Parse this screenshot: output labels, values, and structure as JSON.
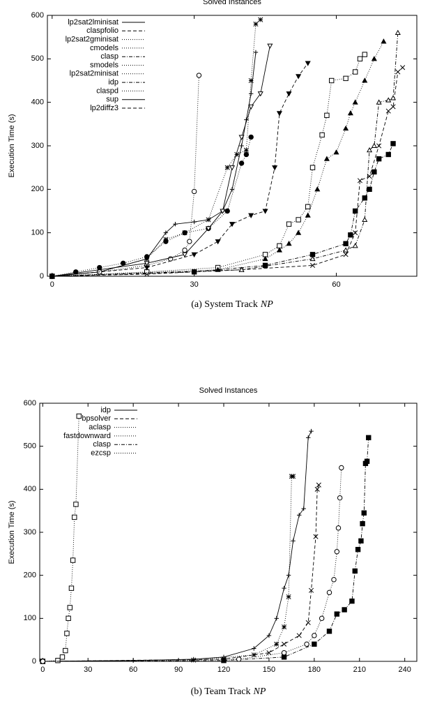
{
  "chart_data": [
    {
      "type": "line",
      "title": "Solved Instances",
      "y_label": "Execution Time (s)",
      "caption": "(a) System Track",
      "caption_italic": "NP",
      "xlim": [
        -1,
        77
      ],
      "xticks": [
        0,
        30,
        60
      ],
      "ylim": [
        0,
        600
      ],
      "yticks": [
        0,
        100,
        200,
        300,
        400,
        500,
        600
      ],
      "legend": "upper-left",
      "series": [
        {
          "name": "lp2sat2lminisat",
          "color": "#000000",
          "marker": "plus",
          "dash": "solid",
          "x": [
            0,
            10,
            20,
            24,
            26,
            30,
            33,
            36,
            38,
            40,
            41,
            42,
            43
          ],
          "values": [
            0,
            10,
            40,
            100,
            120,
            125,
            130,
            150,
            200,
            300,
            360,
            420,
            515
          ]
        },
        {
          "name": "claspfolio",
          "color": "#000000",
          "marker": "cross",
          "dash": "dashed",
          "x": [
            0,
            20,
            40,
            55,
            62,
            64,
            65,
            67,
            69,
            71,
            72,
            73,
            74
          ],
          "values": [
            0,
            5,
            15,
            25,
            50,
            100,
            220,
            230,
            300,
            380,
            390,
            470,
            480
          ]
        },
        {
          "name": "lp2sat2gminisat",
          "color": "#000000",
          "marker": "star",
          "dash": "dotted",
          "x": [
            0,
            10,
            20,
            24,
            28,
            33,
            37,
            39,
            41,
            42,
            43,
            44
          ],
          "values": [
            0,
            10,
            40,
            85,
            100,
            130,
            250,
            280,
            290,
            450,
            580,
            590
          ]
        },
        {
          "name": "cmodels",
          "color": "#000000",
          "marker": "square-open",
          "dash": "dotted",
          "x": [
            0,
            20,
            35,
            45,
            48,
            50,
            52,
            54,
            55,
            57,
            58,
            59,
            62,
            64,
            65,
            66
          ],
          "values": [
            0,
            10,
            20,
            50,
            70,
            120,
            130,
            160,
            250,
            325,
            370,
            450,
            455,
            470,
            500,
            510
          ]
        },
        {
          "name": "clasp",
          "color": "#000000",
          "marker": "square-filled",
          "dash": "dashdot",
          "x": [
            0,
            30,
            45,
            55,
            62,
            63,
            64,
            66,
            67,
            68,
            69,
            71,
            72
          ],
          "values": [
            0,
            10,
            25,
            50,
            75,
            95,
            150,
            180,
            200,
            240,
            270,
            280,
            305
          ]
        },
        {
          "name": "smodels",
          "color": "#000000",
          "marker": "circle-open",
          "dash": "dotted",
          "x": [
            0,
            10,
            20,
            25,
            28,
            29,
            30,
            31
          ],
          "values": [
            0,
            10,
            25,
            40,
            60,
            80,
            195,
            462
          ]
        },
        {
          "name": "lp2sat2minisat",
          "color": "#000000",
          "marker": "circle-filled",
          "dash": "dotted",
          "x": [
            0,
            5,
            10,
            15,
            20,
            24,
            28,
            33,
            37,
            40,
            41,
            42
          ],
          "values": [
            0,
            10,
            20,
            30,
            45,
            80,
            100,
            110,
            150,
            260,
            280,
            320
          ]
        },
        {
          "name": "idp",
          "color": "#000000",
          "marker": "triangle-open",
          "dash": "dashdot",
          "x": [
            0,
            40,
            55,
            62,
            64,
            66,
            67,
            68,
            69,
            71,
            72,
            73
          ],
          "values": [
            0,
            15,
            40,
            60,
            70,
            130,
            290,
            300,
            400,
            405,
            410,
            560
          ]
        },
        {
          "name": "claspd",
          "color": "#000000",
          "marker": "triangle-filled",
          "dash": "dotted",
          "x": [
            0,
            35,
            45,
            48,
            50,
            52,
            54,
            56,
            58,
            60,
            62,
            63,
            64,
            66,
            68,
            70
          ],
          "values": [
            0,
            15,
            40,
            60,
            75,
            100,
            140,
            200,
            270,
            285,
            340,
            375,
            400,
            450,
            500,
            540
          ]
        },
        {
          "name": "sup",
          "color": "#000000",
          "marker": "itriangle-open",
          "dash": "solid",
          "x": [
            0,
            20,
            28,
            33,
            36,
            38,
            40,
            42,
            44,
            46
          ],
          "values": [
            0,
            30,
            50,
            110,
            150,
            250,
            320,
            390,
            420,
            530
          ]
        },
        {
          "name": "lp2diffz3",
          "color": "#000000",
          "marker": "itriangle-filled",
          "dash": "dashed",
          "x": [
            0,
            20,
            30,
            35,
            38,
            42,
            45,
            47,
            48,
            50,
            52,
            54
          ],
          "values": [
            0,
            20,
            50,
            80,
            120,
            140,
            150,
            250,
            375,
            420,
            460,
            490
          ]
        }
      ]
    },
    {
      "type": "line",
      "title": "Solved Instances",
      "y_label": "Execution Time (s)",
      "caption": "(b) Team Track",
      "caption_italic": "NP",
      "xlim": [
        -2,
        248
      ],
      "xticks": [
        0,
        30,
        60,
        90,
        120,
        150,
        180,
        210,
        240
      ],
      "ylim": [
        0,
        600
      ],
      "yticks": [
        0,
        100,
        200,
        300,
        400,
        500,
        600
      ],
      "legend": "upper-left",
      "series": [
        {
          "name": "idp",
          "color": "#000000",
          "marker": "plus",
          "dash": "solid",
          "x": [
            0,
            60,
            100,
            120,
            140,
            150,
            155,
            160,
            163,
            166,
            170,
            173,
            176,
            178
          ],
          "values": [
            0,
            2,
            5,
            10,
            30,
            60,
            100,
            170,
            200,
            280,
            340,
            355,
            520,
            535
          ]
        },
        {
          "name": "bpsolver",
          "color": "#000000",
          "marker": "cross",
          "dash": "dashed",
          "x": [
            0,
            120,
            150,
            160,
            170,
            176,
            178,
            181,
            182,
            183
          ],
          "values": [
            0,
            5,
            20,
            40,
            60,
            90,
            165,
            290,
            400,
            410
          ]
        },
        {
          "name": "aclasp",
          "color": "#000000",
          "marker": "star",
          "dash": "dotted",
          "x": [
            0,
            100,
            140,
            155,
            160,
            163,
            165,
            166
          ],
          "values": [
            0,
            3,
            15,
            40,
            80,
            150,
            430,
            430
          ]
        },
        {
          "name": "fastdownward",
          "color": "#000000",
          "marker": "square-open",
          "dash": "dotted",
          "x": [
            0,
            10,
            13,
            15,
            16,
            17,
            18,
            19,
            20,
            21,
            22,
            24
          ],
          "values": [
            0,
            2,
            10,
            25,
            65,
            100,
            125,
            170,
            235,
            335,
            365,
            570
          ]
        },
        {
          "name": "clasp",
          "color": "#000000",
          "marker": "square-filled",
          "dash": "dashdot",
          "x": [
            0,
            120,
            160,
            180,
            190,
            195,
            200,
            205,
            207,
            209,
            211,
            212,
            213,
            214,
            215,
            216
          ],
          "values": [
            0,
            2,
            10,
            40,
            70,
            110,
            120,
            140,
            210,
            260,
            280,
            320,
            345,
            460,
            465,
            520
          ]
        },
        {
          "name": "ezcsp",
          "color": "#000000",
          "marker": "circle-open",
          "dash": "dotted",
          "x": [
            0,
            130,
            160,
            175,
            180,
            185,
            190,
            193,
            195,
            196,
            197,
            198
          ],
          "values": [
            0,
            5,
            20,
            40,
            60,
            100,
            160,
            190,
            255,
            310,
            380,
            450
          ]
        }
      ]
    }
  ]
}
